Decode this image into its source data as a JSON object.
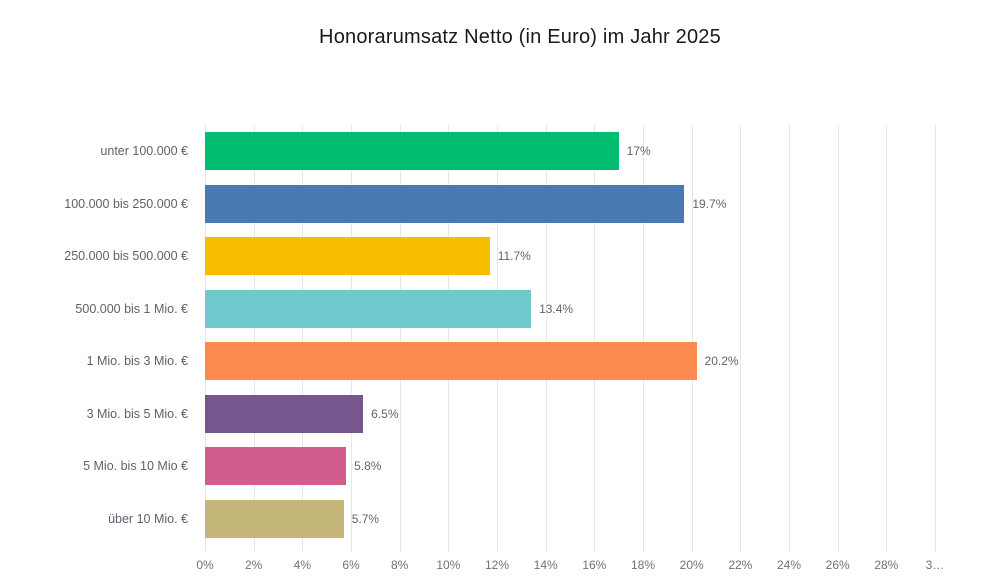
{
  "title": "Honorarumsatz Netto (in Euro) im Jahr 2025",
  "chart_data": {
    "type": "bar",
    "orientation": "horizontal",
    "title": "Honorarumsatz Netto (in Euro) im Jahr 2025",
    "categories": [
      "unter 100.000 €",
      "100.000 bis 250.000 €",
      "250.000 bis 500.000 €",
      "500.000 bis 1 Mio. €",
      "1 Mio. bis 3 Mio. €",
      "3 Mio. bis 5 Mio. €",
      "5 Mio. bis 10 Mio €",
      "über 10 Mio. €"
    ],
    "values": [
      17,
      19.7,
      11.7,
      13.4,
      20.2,
      6.5,
      5.8,
      5.7
    ],
    "value_labels": [
      "17%",
      "19.7%",
      "11.7%",
      "13.4%",
      "20.2%",
      "6.5%",
      "5.8%",
      "5.7%"
    ],
    "bar_colors": [
      "#00bd70",
      "#4a7ab3",
      "#f9be00",
      "#6fc8cc",
      "#fc8b50",
      "#76578d",
      "#d25c8c",
      "#c4b678"
    ],
    "xlabel": "",
    "ylabel": "",
    "xlim": [
      0,
      30
    ],
    "x_tick_values": [
      0,
      2,
      4,
      6,
      8,
      10,
      12,
      14,
      16,
      18,
      20,
      22,
      24,
      26,
      28,
      30
    ],
    "x_tick_labels": [
      "0%",
      "2%",
      "4%",
      "6%",
      "8%",
      "10%",
      "12%",
      "14%",
      "16%",
      "18%",
      "20%",
      "22%",
      "24%",
      "26%",
      "28%",
      "3…"
    ],
    "grid": "vertical",
    "legend_position": "none"
  },
  "colors": {
    "background": "#ffffff",
    "grid": "#e7e7e7",
    "category_label": "#5b636d",
    "value_label": "#5d6570",
    "tick_label": "#6a737d",
    "title": "#1a1a1a"
  }
}
